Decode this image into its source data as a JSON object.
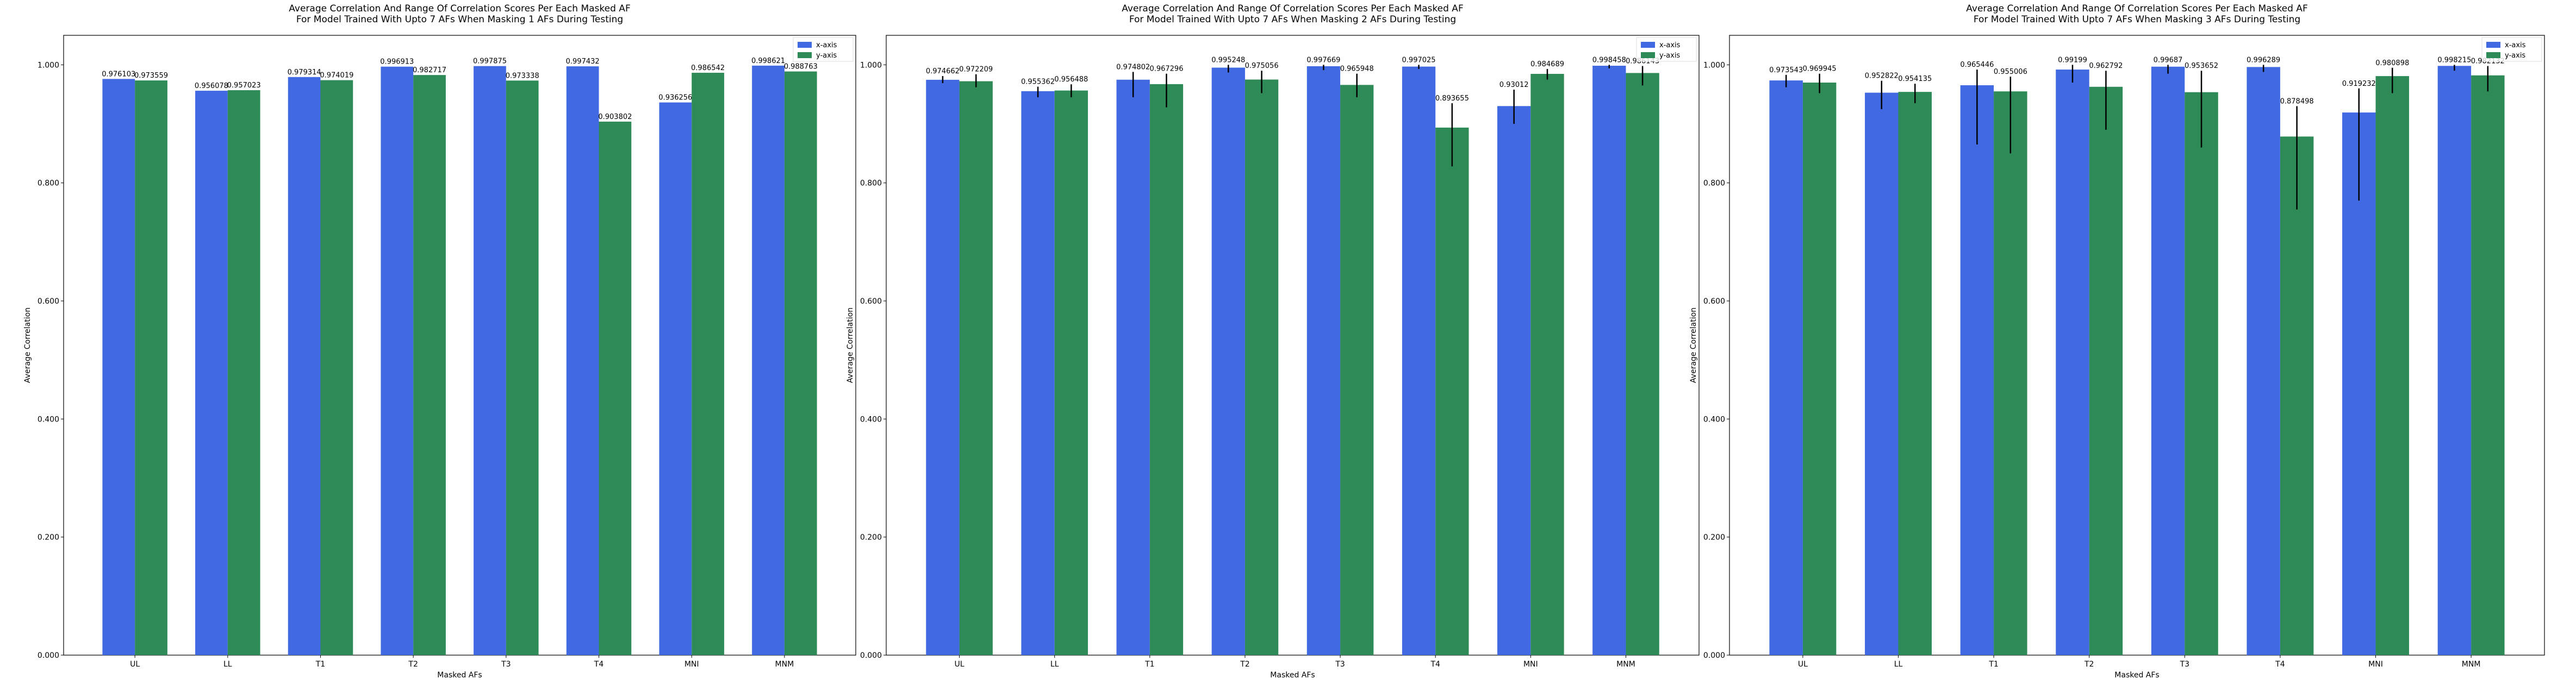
{
  "colors": {
    "x_axis": "#4169e1",
    "y_axis": "#2e8b57",
    "error_bar": "#000000"
  },
  "chart_data": [
    {
      "type": "bar",
      "title": "Average Correlation And Range Of Correlation Scores Per Each Masked AF\nFor Model Trained With Upto 7 AFs When Masking 1 AFs During Testing",
      "xlabel": "Masked AFs",
      "ylabel": "Average Correlation",
      "ylim": [
        0,
        1.05
      ],
      "yticks": [
        "0.000",
        "0.200",
        "0.400",
        "0.600",
        "0.800",
        "1.000"
      ],
      "legend_position": "top-right",
      "categories": [
        "UL",
        "LL",
        "T1",
        "T2",
        "T3",
        "T4",
        "MNI",
        "MNM"
      ],
      "series": [
        {
          "name": "x-axis",
          "values": [
            0.976103,
            0.956078,
            0.979314,
            0.996913,
            0.997875,
            0.997432,
            0.936256,
            0.998621
          ],
          "labels": [
            "0.976103",
            "0.956078",
            "0.979314",
            "0.996913",
            "0.997875",
            "0.997432",
            "0.936256",
            "0.998621"
          ],
          "err_low": [
            0.976103,
            0.956078,
            0.979314,
            0.996913,
            0.997875,
            0.997432,
            0.936256,
            0.998621
          ],
          "err_high": [
            0.976103,
            0.956078,
            0.979314,
            0.996913,
            0.997875,
            0.997432,
            0.936256,
            0.998621
          ]
        },
        {
          "name": "y-axis",
          "values": [
            0.973559,
            0.957023,
            0.974019,
            0.982717,
            0.973338,
            0.903802,
            0.986542,
            0.988763
          ],
          "labels": [
            "0.973559",
            "0.957023",
            "0.974019",
            "0.982717",
            "0.973338",
            "0.903802",
            "0.986542",
            "0.988763"
          ],
          "err_low": [
            0.973559,
            0.957023,
            0.974019,
            0.982717,
            0.973338,
            0.903802,
            0.986542,
            0.988763
          ],
          "err_high": [
            0.973559,
            0.957023,
            0.974019,
            0.982717,
            0.973338,
            0.903802,
            0.986542,
            0.988763
          ]
        }
      ]
    },
    {
      "type": "bar",
      "title": "Average Correlation And Range Of Correlation Scores Per Each Masked AF\nFor Model Trained With Upto 7 AFs When Masking 2 AFs During Testing",
      "xlabel": "Masked AFs",
      "ylabel": "Average Correlation",
      "ylim": [
        0,
        1.05
      ],
      "yticks": [
        "0.000",
        "0.200",
        "0.400",
        "0.600",
        "0.800",
        "1.000"
      ],
      "legend_position": "top-right",
      "categories": [
        "UL",
        "LL",
        "T1",
        "T2",
        "T3",
        "T4",
        "MNI",
        "MNM"
      ],
      "series": [
        {
          "name": "x-axis",
          "values": [
            0.974662,
            0.955362,
            0.974802,
            0.995248,
            0.997669,
            0.997025,
            0.93012,
            0.998458
          ],
          "labels": [
            "0.974662",
            "0.955362",
            "0.974802",
            "0.995248",
            "0.997669",
            "0.997025",
            "0.93012",
            "0.998458"
          ],
          "err_low": [
            0.969,
            0.945,
            0.945,
            0.987,
            0.991,
            0.993,
            0.9,
            0.994
          ],
          "err_high": [
            0.981,
            0.963,
            0.988,
            1.0,
            1.0,
            1.0,
            0.958,
            1.0
          ]
        },
        {
          "name": "y-axis",
          "values": [
            0.972209,
            0.956488,
            0.967296,
            0.975056,
            0.965948,
            0.893655,
            0.984689,
            0.986143
          ],
          "labels": [
            "0.972209",
            "0.956488",
            "0.967296",
            "0.975056",
            "0.965948",
            "0.893655",
            "0.984689",
            "0.986143"
          ],
          "err_low": [
            0.962,
            0.945,
            0.928,
            0.952,
            0.945,
            0.828,
            0.975,
            0.965
          ],
          "err_high": [
            0.984,
            0.967,
            0.985,
            0.99,
            0.985,
            0.935,
            0.993,
            0.998
          ]
        }
      ]
    },
    {
      "type": "bar",
      "title": "Average Correlation And Range Of Correlation Scores Per Each Masked AF\nFor Model Trained With Upto 7 AFs When Masking 3 AFs During Testing",
      "xlabel": "Masked AFs",
      "ylabel": "Average Correlation",
      "ylim": [
        0,
        1.05
      ],
      "yticks": [
        "0.000",
        "0.200",
        "0.400",
        "0.600",
        "0.800",
        "1.000"
      ],
      "legend_position": "top-right",
      "categories": [
        "UL",
        "LL",
        "T1",
        "T2",
        "T3",
        "T4",
        "MNI",
        "MNM"
      ],
      "series": [
        {
          "name": "x-axis",
          "values": [
            0.973543,
            0.952822,
            0.965446,
            0.99199,
            0.99687,
            0.996289,
            0.919232,
            0.998215
          ],
          "labels": [
            "0.973543",
            "0.952822",
            "0.965446",
            "0.99199",
            "0.99687",
            "0.996289",
            "0.919232",
            "0.998215"
          ],
          "err_low": [
            0.962,
            0.925,
            0.865,
            0.97,
            0.985,
            0.988,
            0.77,
            0.99
          ],
          "err_high": [
            0.983,
            0.973,
            0.992,
            1.0,
            1.0,
            1.0,
            0.96,
            1.0
          ]
        },
        {
          "name": "y-axis",
          "values": [
            0.969945,
            0.954135,
            0.955006,
            0.962792,
            0.953652,
            0.878498,
            0.980898,
            0.982132
          ],
          "labels": [
            "0.969945",
            "0.954135",
            "0.955006",
            "0.962792",
            "0.953652",
            "0.878498",
            "0.980898",
            "0.982132"
          ],
          "err_low": [
            0.952,
            0.935,
            0.85,
            0.89,
            0.86,
            0.755,
            0.952,
            0.955
          ],
          "err_high": [
            0.985,
            0.968,
            0.98,
            0.99,
            0.99,
            0.93,
            0.995,
            0.998
          ]
        }
      ]
    }
  ]
}
